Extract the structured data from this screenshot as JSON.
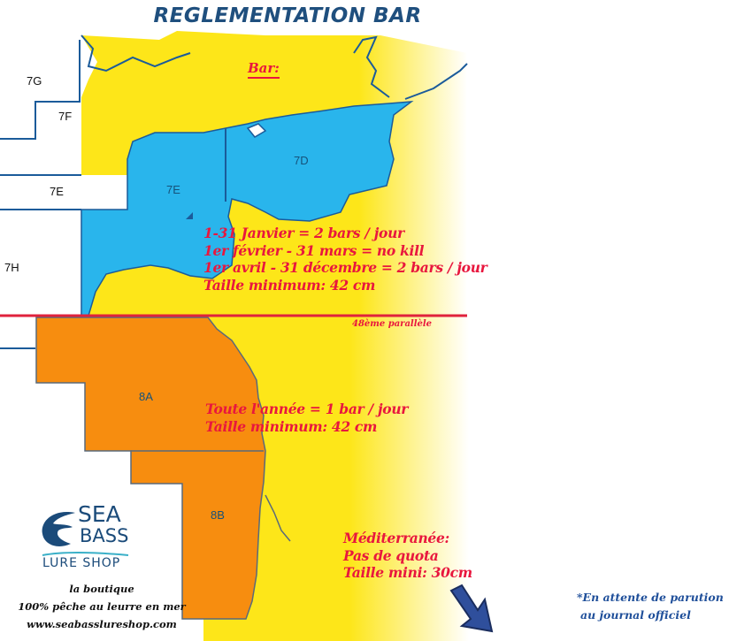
{
  "title": "REGLEMENTATION BAR",
  "heading": "Bar:",
  "zones": {
    "7G": "7G",
    "7F": "7F",
    "7E_outer": "7E",
    "7E": "7E",
    "7D": "7D",
    "7H": "7H",
    "8A": "8A",
    "8B": "8B"
  },
  "north_rules": [
    "1-31 Janvier = 2 bars / jour",
    "1er février - 31 mars = no kill",
    "1er avril - 31 décembre = 2 bars / jour",
    "Taille minimum: 42 cm"
  ],
  "parallel_label": "48ème parallèle",
  "south_rules": [
    "Toute l'année = 1 bar / jour",
    "Taille minimum: 42 cm"
  ],
  "mediterranee": [
    "Méditerranée:",
    "Pas de quota",
    "Taille mini: 30cm"
  ],
  "note": [
    "*En attente de parution",
    "au journal officiel"
  ],
  "logo": {
    "line1": "SEA",
    "line2": "BASS",
    "line3": "LURE SHOP"
  },
  "tagline": [
    "la boutique",
    "100% pêche au leurre en mer",
    "www.seabasslureshop.com"
  ],
  "colors": {
    "north_zone": "#29b5ec",
    "south_zone": "#f78d0f",
    "sea_land": "#fde619",
    "rule_text": "#e8173e",
    "title": "#1f4f7e",
    "parallel_line": "#e0223c"
  }
}
